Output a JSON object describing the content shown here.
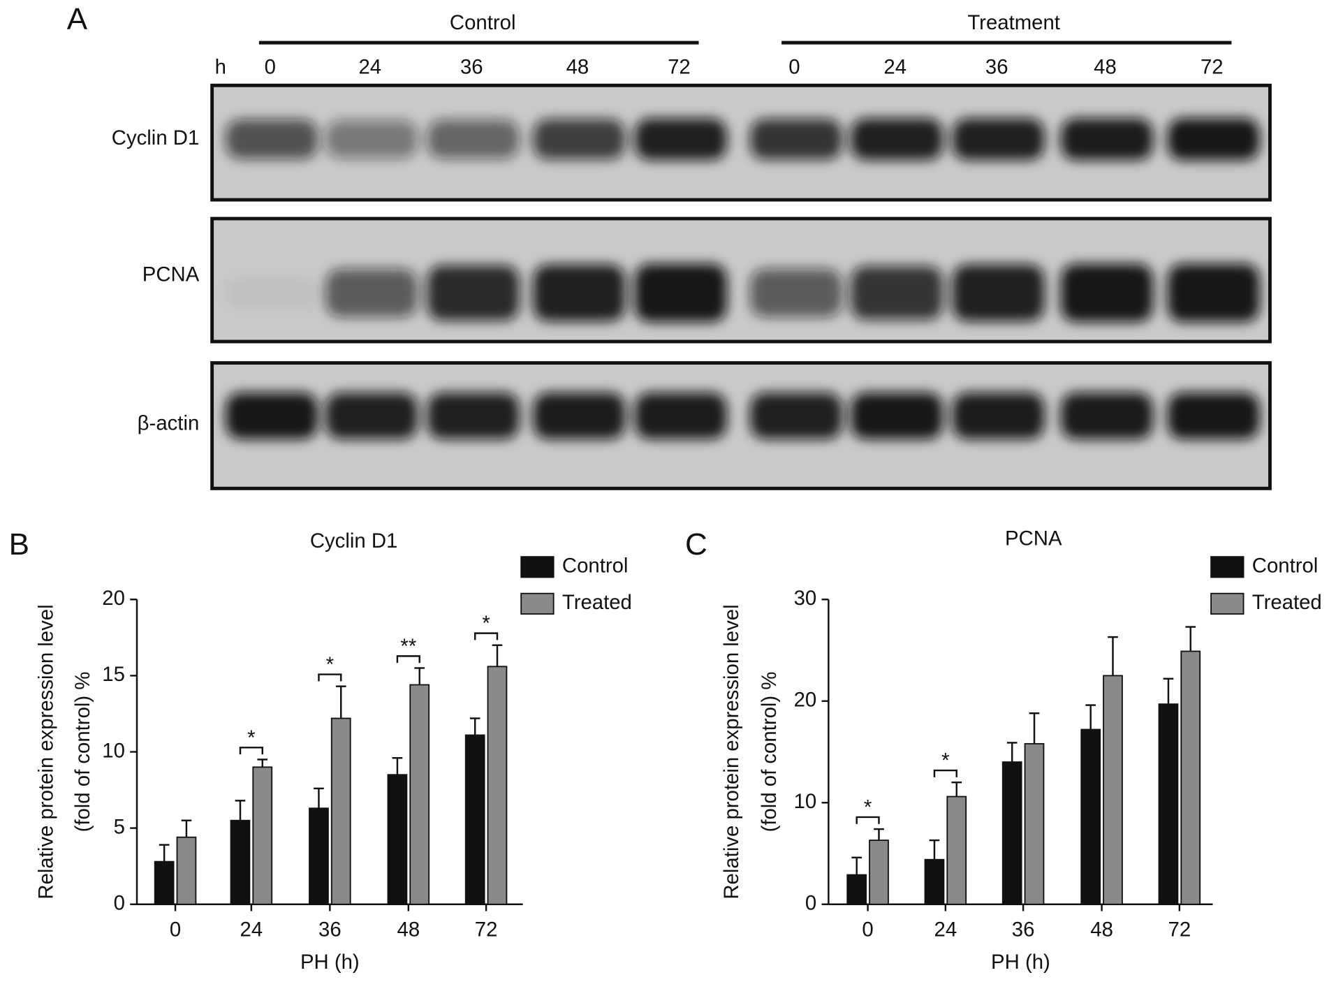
{
  "panels": [
    "A",
    "B",
    "C"
  ],
  "blot": {
    "hours_label": "h",
    "groups": [
      "Control",
      "Treatment"
    ],
    "lanes": [
      "0",
      "24",
      "36",
      "48",
      "72",
      "0",
      "24",
      "36",
      "48",
      "72"
    ],
    "rows": [
      "Cyclin D1",
      "PCNA",
      "β-actin"
    ]
  },
  "chart_data": [
    {
      "type": "bar",
      "title": "Cyclin D1",
      "ylabel": [
        "Relative protein expression level",
        "(fold of control) %"
      ],
      "xlabel": "PH (h)",
      "categories": [
        "0",
        "24",
        "36",
        "48",
        "72"
      ],
      "series": [
        {
          "name": "Control",
          "color": "#111111",
          "values": [
            2.8,
            5.5,
            6.3,
            8.5,
            11.1
          ],
          "errors": [
            1.1,
            1.3,
            1.3,
            1.1,
            1.1
          ]
        },
        {
          "name": "Treated",
          "color": "#8a8a8a",
          "values": [
            4.4,
            9.0,
            12.2,
            14.4,
            15.6
          ],
          "errors": [
            1.1,
            0.5,
            2.1,
            1.1,
            1.4
          ]
        }
      ],
      "significance": [
        null,
        "*",
        "*",
        "**",
        "*"
      ],
      "ylim": [
        0,
        20
      ],
      "yticks": [
        0,
        5,
        10,
        15,
        20
      ],
      "legend": "top-right"
    },
    {
      "type": "bar",
      "title": "PCNA",
      "ylabel": [
        "Relative protein expression level",
        "(fold of control) %"
      ],
      "xlabel": "PH (h)",
      "categories": [
        "0",
        "24",
        "36",
        "48",
        "72"
      ],
      "series": [
        {
          "name": "Control",
          "color": "#111111",
          "values": [
            2.9,
            4.4,
            14.0,
            17.2,
            19.7
          ],
          "errors": [
            1.7,
            1.9,
            1.9,
            2.4,
            2.5
          ]
        },
        {
          "name": "Treated",
          "color": "#8a8a8a",
          "values": [
            6.3,
            10.6,
            15.8,
            22.5,
            24.9
          ],
          "errors": [
            1.1,
            1.4,
            3.0,
            3.8,
            2.4
          ]
        }
      ],
      "significance": [
        "*",
        "*",
        null,
        null,
        null
      ],
      "ylim": [
        0,
        30
      ],
      "yticks": [
        0,
        10,
        20,
        30
      ],
      "legend": "top-right"
    }
  ]
}
